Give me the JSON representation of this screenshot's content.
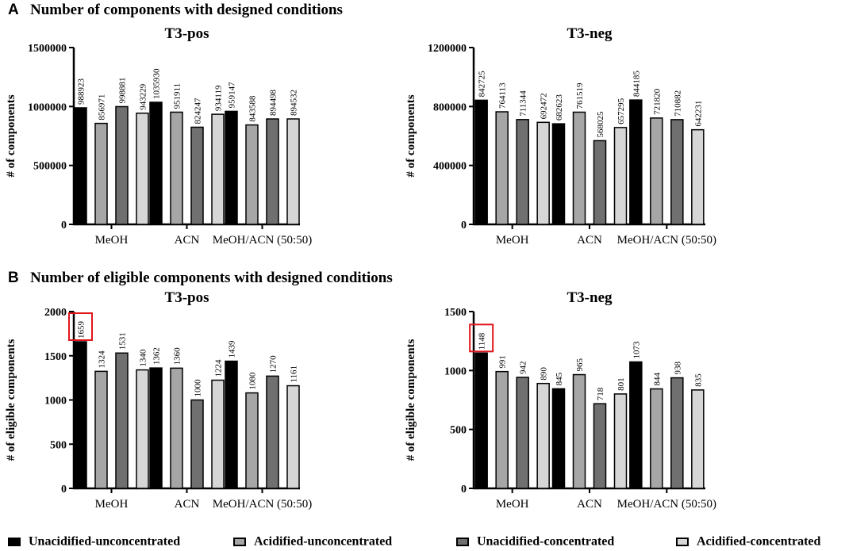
{
  "sections": [
    {
      "letter": "A",
      "title": "Number of components with designed conditions"
    },
    {
      "letter": "B",
      "title": "Number of eligible components with designed conditions"
    }
  ],
  "legend": [
    {
      "label": "Unacidified-unconcentrated",
      "color": "#000000"
    },
    {
      "label": "Acidified-unconcentrated",
      "color": "#a6a6a6"
    },
    {
      "label": "Unacidified-concentrated",
      "color": "#707070"
    },
    {
      "label": "Acidified-concentrated",
      "color": "#d6d6d6"
    }
  ],
  "chart_data": [
    {
      "type": "bar",
      "title": "T3-pos",
      "ylabel": "# of components",
      "xlabel": "",
      "ylim": [
        0,
        1500000
      ],
      "yticks": [
        "0",
        "500000",
        "1000000",
        "1500000"
      ],
      "categories": [
        "MeOH",
        "ACN",
        "MeOH/ACN (50:50)"
      ],
      "series": [
        {
          "name": "Unacidified-unconcentrated",
          "values": [
            988923,
            1035930,
            959147
          ]
        },
        {
          "name": "Acidified-unconcentrated",
          "values": [
            856971,
            951911,
            843588
          ]
        },
        {
          "name": "Unacidified-concentrated",
          "values": [
            998881,
            824247,
            894498
          ]
        },
        {
          "name": "Acidified-concentrated",
          "values": [
            943229,
            934119,
            894532
          ]
        }
      ],
      "labels": [
        [
          "988923",
          "1035930",
          "959147"
        ],
        [
          "856971",
          "951911",
          "843588"
        ],
        [
          "998881",
          "824247",
          "894498"
        ],
        [
          "943229",
          "934119",
          "894532"
        ]
      ],
      "highlight": null
    },
    {
      "type": "bar",
      "title": "T3-neg",
      "ylabel": "# of components",
      "xlabel": "",
      "ylim": [
        0,
        1200000
      ],
      "yticks": [
        "0",
        "400000",
        "800000",
        "1200000"
      ],
      "categories": [
        "MeOH",
        "ACN",
        "MeOH/ACN (50:50)"
      ],
      "series": [
        {
          "name": "Unacidified-unconcentrated",
          "values": [
            842725,
            682623,
            844185
          ]
        },
        {
          "name": "Acidified-unconcentrated",
          "values": [
            764113,
            761519,
            721820
          ]
        },
        {
          "name": "Unacidified-concentrated",
          "values": [
            711344,
            568025,
            710882
          ]
        },
        {
          "name": "Acidified-concentrated",
          "values": [
            692472,
            657295,
            642231
          ]
        }
      ],
      "labels": [
        [
          "842725",
          "682623",
          "844185"
        ],
        [
          "764113",
          "761519",
          "721820"
        ],
        [
          "711344",
          "568025",
          "710882"
        ],
        [
          "692472",
          "657295",
          "642231"
        ]
      ],
      "highlight": null
    },
    {
      "type": "bar",
      "title": "T3-pos",
      "ylabel": "# of eligible components",
      "xlabel": "",
      "ylim": [
        0,
        2000
      ],
      "yticks": [
        "0",
        "500",
        "1000",
        "1500",
        "2000"
      ],
      "categories": [
        "MeOH",
        "ACN",
        "MeOH/ACN (50:50)"
      ],
      "series": [
        {
          "name": "Unacidified-unconcentrated",
          "values": [
            1659,
            1362,
            1439
          ]
        },
        {
          "name": "Acidified-unconcentrated",
          "values": [
            1324,
            1360,
            1080
          ]
        },
        {
          "name": "Unacidified-concentrated",
          "values": [
            1531,
            1000,
            1270
          ]
        },
        {
          "name": "Acidified-concentrated",
          "values": [
            1340,
            1224,
            1161
          ]
        }
      ],
      "labels": [
        [
          "1659",
          "1362",
          "1439"
        ],
        [
          "1324",
          "1360",
          "1080"
        ],
        [
          "1531",
          "1000",
          "1270"
        ],
        [
          "1340",
          "1224",
          "1161"
        ]
      ],
      "highlight": {
        "series": 0,
        "category": 0,
        "color": "#e0161b"
      }
    },
    {
      "type": "bar",
      "title": "T3-neg",
      "ylabel": "# of eligible components",
      "xlabel": "",
      "ylim": [
        0,
        1500
      ],
      "yticks": [
        "0",
        "500",
        "1000",
        "1500"
      ],
      "categories": [
        "MeOH",
        "ACN",
        "MeOH/ACN (50:50)"
      ],
      "series": [
        {
          "name": "Unacidified-unconcentrated",
          "values": [
            1148,
            845,
            1073
          ]
        },
        {
          "name": "Acidified-unconcentrated",
          "values": [
            991,
            965,
            844
          ]
        },
        {
          "name": "Unacidified-concentrated",
          "values": [
            942,
            718,
            938
          ]
        },
        {
          "name": "Acidified-concentrated",
          "values": [
            890,
            801,
            835
          ]
        }
      ],
      "labels": [
        [
          "1148",
          "845",
          "1073"
        ],
        [
          "991",
          "965",
          "844"
        ],
        [
          "942",
          "718",
          "938"
        ],
        [
          "890",
          "801",
          "835"
        ]
      ],
      "highlight": {
        "series": 0,
        "category": 0,
        "color": "#e0161b"
      }
    }
  ]
}
